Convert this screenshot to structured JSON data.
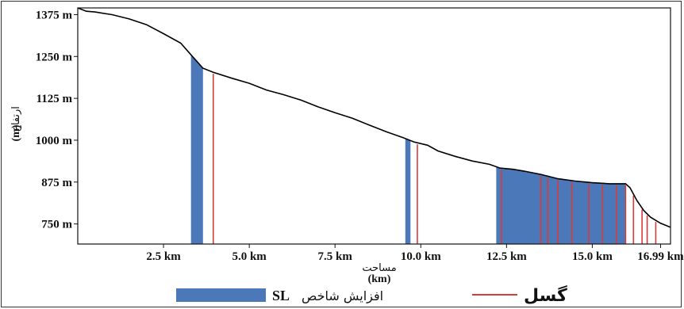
{
  "chart_data": {
    "type": "line",
    "x_unit": "km",
    "y_unit": "m",
    "xlim": [
      0,
      17.28
    ],
    "ylim": [
      690,
      1395
    ],
    "x_ticks": [
      2.5,
      5.0,
      7.5,
      10.0,
      12.5,
      15.0,
      16.99
    ],
    "x_tick_labels": [
      "2.5 km",
      "5.0 km",
      "7.5 km",
      "10.0 km",
      "12.5 km",
      "15.0 km",
      "16.99 km"
    ],
    "y_ticks": [
      1375,
      1250,
      1125,
      1000,
      875,
      750
    ],
    "y_tick_labels": [
      "1375 m",
      "1250 m",
      "1125 m",
      "1000 m",
      "875 m",
      "750 m"
    ],
    "xlabel_fa": "مساحت",
    "xlabel_unit": "(km)",
    "ylabel_fa": "ارتفاع",
    "ylabel_unit": "(m)",
    "profile": {
      "x": [
        0.0,
        0.25,
        0.5,
        1.0,
        1.5,
        2.0,
        2.5,
        3.0,
        3.3,
        3.65,
        3.95,
        4.5,
        5.0,
        5.5,
        6.0,
        6.5,
        7.0,
        7.5,
        8.0,
        8.5,
        9.0,
        9.5,
        9.8,
        10.2,
        10.5,
        11.0,
        11.5,
        12.0,
        12.3,
        12.7,
        13.0,
        13.5,
        14.0,
        14.5,
        15.0,
        15.5,
        15.97,
        16.1,
        16.3,
        16.5,
        16.7,
        16.99,
        17.28
      ],
      "y": [
        1395,
        1385,
        1383,
        1375,
        1362,
        1345,
        1318,
        1290,
        1255,
        1215,
        1203,
        1185,
        1170,
        1150,
        1136,
        1120,
        1100,
        1082,
        1066,
        1045,
        1025,
        1007,
        995,
        985,
        968,
        952,
        938,
        928,
        917,
        913,
        908,
        898,
        885,
        878,
        873,
        870,
        870,
        858,
        820,
        790,
        770,
        752,
        740
      ]
    },
    "sl_increase_bands": [
      [
        3.3,
        3.65
      ],
      [
        9.55,
        9.7
      ],
      [
        12.2,
        15.97
      ]
    ],
    "faults_x": [
      3.95,
      9.9,
      12.35,
      13.5,
      13.7,
      14.0,
      14.4,
      14.9,
      15.3,
      15.7,
      15.97,
      16.2,
      16.45,
      16.6,
      16.85
    ],
    "colors": {
      "band": "#4a78b8",
      "fault": "#d93a3a",
      "profile": "#000000"
    },
    "legend": {
      "fault_label": "گسل",
      "sl_label": "افزایش شاخص",
      "sl_label_latin": "SL"
    }
  }
}
